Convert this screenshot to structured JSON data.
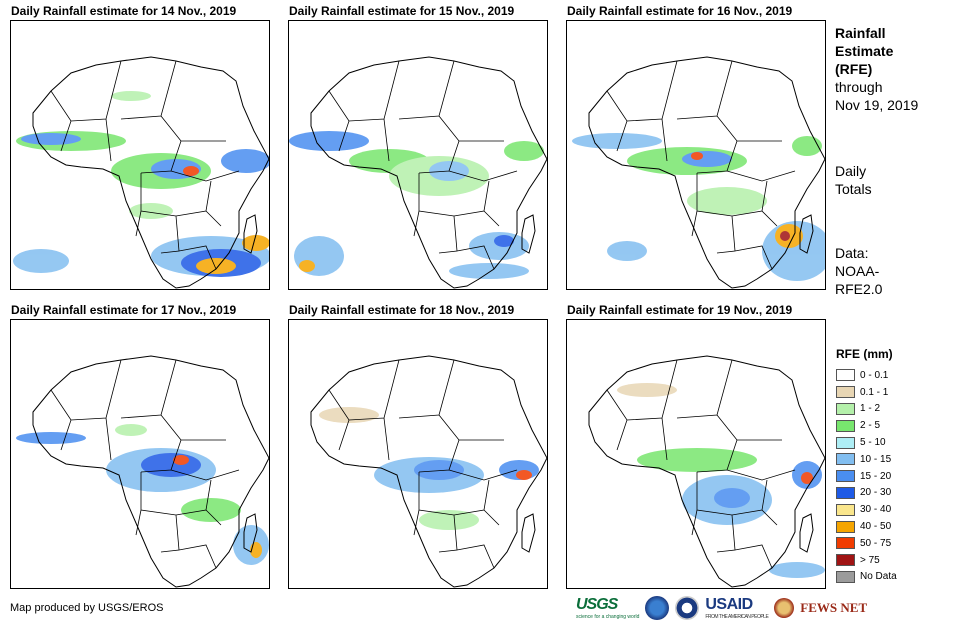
{
  "panels": [
    {
      "title": "Daily Rainfall estimate for 14 Nov., 2019"
    },
    {
      "title": "Daily Rainfall estimate for 15 Nov., 2019"
    },
    {
      "title": "Daily Rainfall estimate for 16 Nov., 2019"
    },
    {
      "title": "Daily Rainfall estimate for 17 Nov., 2019"
    },
    {
      "title": "Daily Rainfall estimate for 18 Nov., 2019"
    },
    {
      "title": "Daily Rainfall estimate for 19 Nov., 2019"
    }
  ],
  "side": {
    "heading1": "Rainfall",
    "heading2": "Estimate",
    "heading3": "(RFE)",
    "through1": "through",
    "through2": "Nov 19, 2019",
    "daily1": "Daily",
    "daily2": "Totals",
    "data1": "Data:",
    "data2": "NOAA-",
    "data3": "RFE2.0"
  },
  "legend": {
    "title": "RFE (mm)",
    "items": [
      {
        "label": "0 - 0.1",
        "color": "#ffffff"
      },
      {
        "label": "0.1 - 1",
        "color": "#e8d6b4"
      },
      {
        "label": "1 - 2",
        "color": "#b4f0aa"
      },
      {
        "label": "2 - 5",
        "color": "#78e66e"
      },
      {
        "label": "5 - 10",
        "color": "#aeeef5"
      },
      {
        "label": "10 - 15",
        "color": "#82bef0"
      },
      {
        "label": "15 - 20",
        "color": "#4a8ef0"
      },
      {
        "label": "20 - 30",
        "color": "#1e5ae6"
      },
      {
        "label": "30 - 40",
        "color": "#fae68c"
      },
      {
        "label": "40 - 50",
        "color": "#f5a500"
      },
      {
        "label": "50 - 75",
        "color": "#f03c00"
      },
      {
        "label": "> 75",
        "color": "#a01414"
      },
      {
        "label": "No Data",
        "color": "#9b9b9b"
      }
    ]
  },
  "footer": {
    "credit": "Map produced by USGS/EROS"
  },
  "logos": {
    "usgs": "USGS",
    "usgs_tag": "science for a changing world",
    "usaid": "USAID",
    "usaid_tag": "FROM THE AMERICAN PEOPLE",
    "fews": "FEWS NET"
  }
}
